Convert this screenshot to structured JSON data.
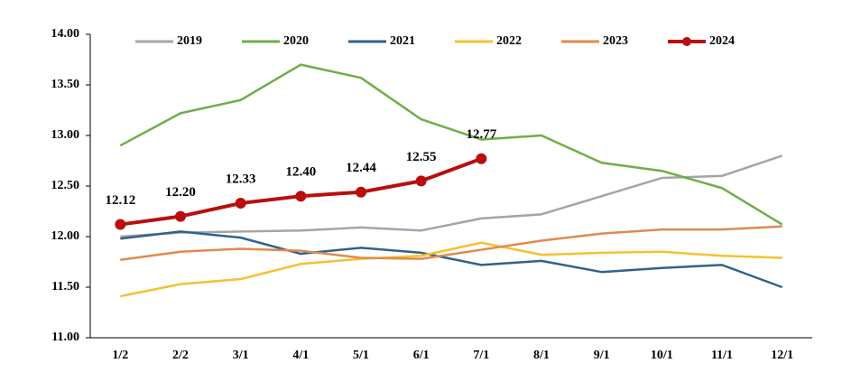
{
  "chart_data": {
    "type": "line",
    "categories": [
      "1/2",
      "2/2",
      "3/1",
      "4/1",
      "5/1",
      "6/1",
      "7/1",
      "8/1",
      "9/1",
      "10/1",
      "11/1",
      "12/1"
    ],
    "series": [
      {
        "name": "2019",
        "color": "#a5a5a5",
        "values": [
          12.0,
          12.04,
          12.05,
          12.06,
          12.09,
          12.06,
          12.18,
          12.22,
          12.4,
          12.58,
          12.6,
          12.8
        ]
      },
      {
        "name": "2020",
        "color": "#70ad47",
        "values": [
          12.9,
          13.22,
          13.35,
          13.7,
          13.57,
          13.16,
          12.96,
          13.0,
          12.73,
          12.65,
          12.48,
          12.12
        ]
      },
      {
        "name": "2021",
        "color": "#31628a",
        "values": [
          11.98,
          12.05,
          11.99,
          11.83,
          11.89,
          11.84,
          11.72,
          11.76,
          11.65,
          11.69,
          11.72,
          11.5
        ]
      },
      {
        "name": "2022",
        "color": "#f5c12e",
        "values": [
          11.41,
          11.53,
          11.58,
          11.73,
          11.78,
          11.81,
          11.94,
          11.82,
          11.84,
          11.85,
          11.81,
          11.79
        ]
      },
      {
        "name": "2023",
        "color": "#e08a4c",
        "values": [
          11.77,
          11.85,
          11.88,
          11.86,
          11.79,
          11.78,
          11.87,
          11.96,
          12.03,
          12.07,
          12.07,
          12.1
        ]
      },
      {
        "name": "2024",
        "color": "#b90e0e",
        "values": [
          12.12,
          12.2,
          12.33,
          12.4,
          12.44,
          12.55,
          12.77,
          null,
          null,
          null,
          null,
          null
        ],
        "value_labels": [
          "12.12",
          "12.20",
          "12.33",
          "12.40",
          "12.44",
          "12.55",
          "12.77",
          null,
          null,
          null,
          null,
          null
        ],
        "markers": true
      }
    ],
    "ylim": [
      11,
      14
    ],
    "yticks": [
      {
        "value": 11,
        "label": "11.00"
      },
      {
        "value": 11.5,
        "label": "11.50"
      },
      {
        "value": 12,
        "label": "12.00"
      },
      {
        "value": 12.5,
        "label": "12.50"
      },
      {
        "value": 13,
        "label": "13.00"
      },
      {
        "value": 13.5,
        "label": "13.50"
      },
      {
        "value": 14,
        "label": "14.00"
      }
    ],
    "grid": false,
    "legend": "top"
  }
}
